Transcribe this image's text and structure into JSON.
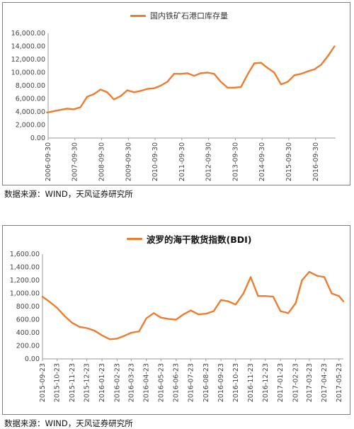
{
  "chart_data": [
    {
      "type": "line",
      "title": "",
      "legend": "国内铁矿石港口库存量",
      "legend_position": "top",
      "grid": false,
      "xlabel": "",
      "ylabel": "",
      "ylim": [
        0,
        16000
      ],
      "y_ticks": [
        "0.00",
        "2,000.00",
        "4,000.00",
        "6,000.00",
        "8,000.00",
        "10,000.00",
        "12,000.00",
        "14,000.00",
        "16,000.00"
      ],
      "x_ticks": [
        "2006-09-30",
        "2007-09-30",
        "2008-09-30",
        "2009-09-30",
        "2010-09-30",
        "2011-09-30",
        "2012-09-30",
        "2013-09-30",
        "2014-09-30",
        "2015-09-30",
        "2016-09-30"
      ],
      "x_start": "2006-09-30",
      "x_end": "2017-06-30",
      "color": "#ED7D31",
      "series": [
        {
          "name": "国内铁矿石港口库存量",
          "x": [
            "2006-09",
            "2006-12",
            "2007-03",
            "2007-06",
            "2007-09",
            "2007-12",
            "2008-03",
            "2008-06",
            "2008-09",
            "2008-12",
            "2009-03",
            "2009-06",
            "2009-09",
            "2009-12",
            "2010-03",
            "2010-06",
            "2010-09",
            "2010-12",
            "2011-03",
            "2011-06",
            "2011-09",
            "2011-12",
            "2012-03",
            "2012-06",
            "2012-09",
            "2012-12",
            "2013-03",
            "2013-06",
            "2013-09",
            "2013-12",
            "2014-03",
            "2014-06",
            "2014-09",
            "2014-12",
            "2015-03",
            "2015-06",
            "2015-09",
            "2015-12",
            "2016-03",
            "2016-06",
            "2016-09",
            "2016-12",
            "2017-03",
            "2017-06"
          ],
          "values": [
            3900,
            4100,
            4300,
            4500,
            4400,
            4700,
            6300,
            6700,
            7400,
            7000,
            5900,
            6400,
            7300,
            7000,
            7200,
            7500,
            7600,
            8000,
            8600,
            9800,
            9800,
            9900,
            9500,
            9900,
            10000,
            9800,
            8600,
            7700,
            7700,
            7800,
            9700,
            11400,
            11500,
            10700,
            10000,
            8200,
            8600,
            9600,
            9800,
            10200,
            10500,
            11200,
            12500,
            14000
          ]
        }
      ]
    },
    {
      "type": "line",
      "title": "波罗的海干散货指数(BDI)",
      "legend": "",
      "grid": false,
      "xlabel": "",
      "ylabel": "",
      "ylim": [
        0,
        1600
      ],
      "y_ticks": [
        "0.00",
        "200.00",
        "400.00",
        "600.00",
        "800.00",
        "1,000.00",
        "1,200.00",
        "1,400.00",
        "1,600.00"
      ],
      "x_ticks": [
        "2015-09-23",
        "2015-10-23",
        "2015-11-23",
        "2015-12-23",
        "2016-01-23",
        "2016-02-23",
        "2016-03-23",
        "2016-04-23",
        "2016-05-23",
        "2016-06-23",
        "2016-07-23",
        "2016-08-23",
        "2016-09-23",
        "2016-10-23",
        "2016-11-23",
        "2016-12-23",
        "2017-01-23",
        "2017-02-23",
        "2017-03-23",
        "2017-04-23",
        "2017-05-23"
      ],
      "color": "#ED7D31",
      "series": [
        {
          "name": "BDI",
          "x": [
            "2015-09-23",
            "2015-10-08",
            "2015-10-23",
            "2015-11-08",
            "2015-11-23",
            "2015-12-08",
            "2015-12-23",
            "2016-01-08",
            "2016-01-23",
            "2016-02-08",
            "2016-02-23",
            "2016-03-08",
            "2016-03-23",
            "2016-04-08",
            "2016-04-23",
            "2016-05-08",
            "2016-05-23",
            "2016-06-08",
            "2016-06-23",
            "2016-07-08",
            "2016-07-23",
            "2016-08-08",
            "2016-08-23",
            "2016-09-08",
            "2016-09-23",
            "2016-10-08",
            "2016-10-23",
            "2016-11-08",
            "2016-11-23",
            "2016-12-08",
            "2016-12-23",
            "2017-01-08",
            "2017-01-23",
            "2017-02-08",
            "2017-02-23",
            "2017-03-08",
            "2017-03-23",
            "2017-04-08",
            "2017-04-23",
            "2017-05-08",
            "2017-05-23",
            "2017-06-01"
          ],
          "values": [
            950,
            870,
            780,
            650,
            550,
            490,
            470,
            430,
            360,
            300,
            310,
            350,
            400,
            420,
            620,
            700,
            630,
            610,
            600,
            680,
            740,
            680,
            690,
            730,
            900,
            880,
            830,
            1000,
            1250,
            960,
            960,
            950,
            730,
            700,
            850,
            1200,
            1330,
            1270,
            1250,
            1000,
            960,
            880
          ]
        }
      ]
    }
  ],
  "sources": [
    "数据来源：WIND，天风证券研究所",
    "数据来源：WIND，天风证券研究所"
  ]
}
